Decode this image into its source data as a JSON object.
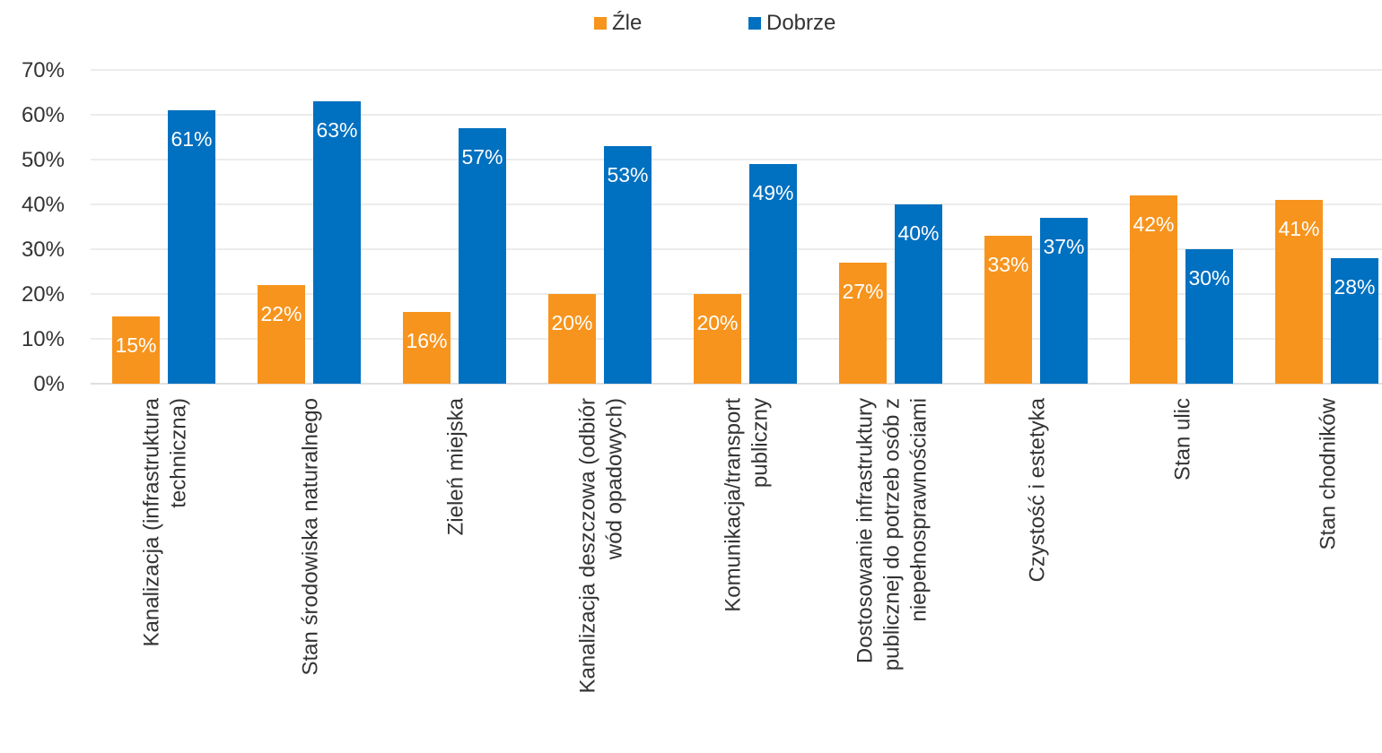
{
  "chart_data": {
    "type": "bar",
    "title": "",
    "xlabel": "",
    "ylabel": "",
    "ylim": [
      0,
      0.7
    ],
    "yticks": [
      "0%",
      "10%",
      "20%",
      "30%",
      "40%",
      "50%",
      "60%",
      "70%"
    ],
    "grid": true,
    "legend_position": "top",
    "categories": [
      "Kanalizacja (infrastruktura techniczna)",
      "Stan środowiska naturalnego",
      "Zieleń miejska",
      "Kanalizacja deszczowa (odbiór wód opadowych)",
      "Komunikacja/transport publiczny",
      "Dostosowanie infrastruktury publicznej do potrzeb osób z niepełnosprawnościami",
      "Czystość i estetyka",
      "Stan ulic",
      "Stan chodników"
    ],
    "category_lines": [
      [
        "Kanalizacja (infrastruktura",
        "techniczna)"
      ],
      [
        "Stan środowiska naturalnego"
      ],
      [
        "Zieleń miejska"
      ],
      [
        "Kanalizacja deszczowa (odbiór",
        "wód opadowych)"
      ],
      [
        "Komunikacja/transport",
        "publiczny"
      ],
      [
        "Dostosowanie infrastruktury",
        "publicznej do potrzeb osób z",
        "niepełnosprawnościami"
      ],
      [
        "Czystość i estetyka"
      ],
      [
        "Stan ulic"
      ],
      [
        "Stan chodników"
      ]
    ],
    "series": [
      {
        "name": "Źle",
        "color": "#F7941D",
        "values": [
          0.15,
          0.22,
          0.16,
          0.2,
          0.2,
          0.27,
          0.33,
          0.42,
          0.41
        ],
        "labels": [
          "15%",
          "22%",
          "16%",
          "20%",
          "20%",
          "27%",
          "33%",
          "42%",
          "41%"
        ]
      },
      {
        "name": "Dobrze",
        "color": "#0070C0",
        "values": [
          0.61,
          0.63,
          0.57,
          0.53,
          0.49,
          0.4,
          0.37,
          0.3,
          0.28
        ],
        "labels": [
          "61%",
          "63%",
          "57%",
          "53%",
          "49%",
          "40%",
          "37%",
          "30%",
          "28%"
        ]
      }
    ]
  }
}
